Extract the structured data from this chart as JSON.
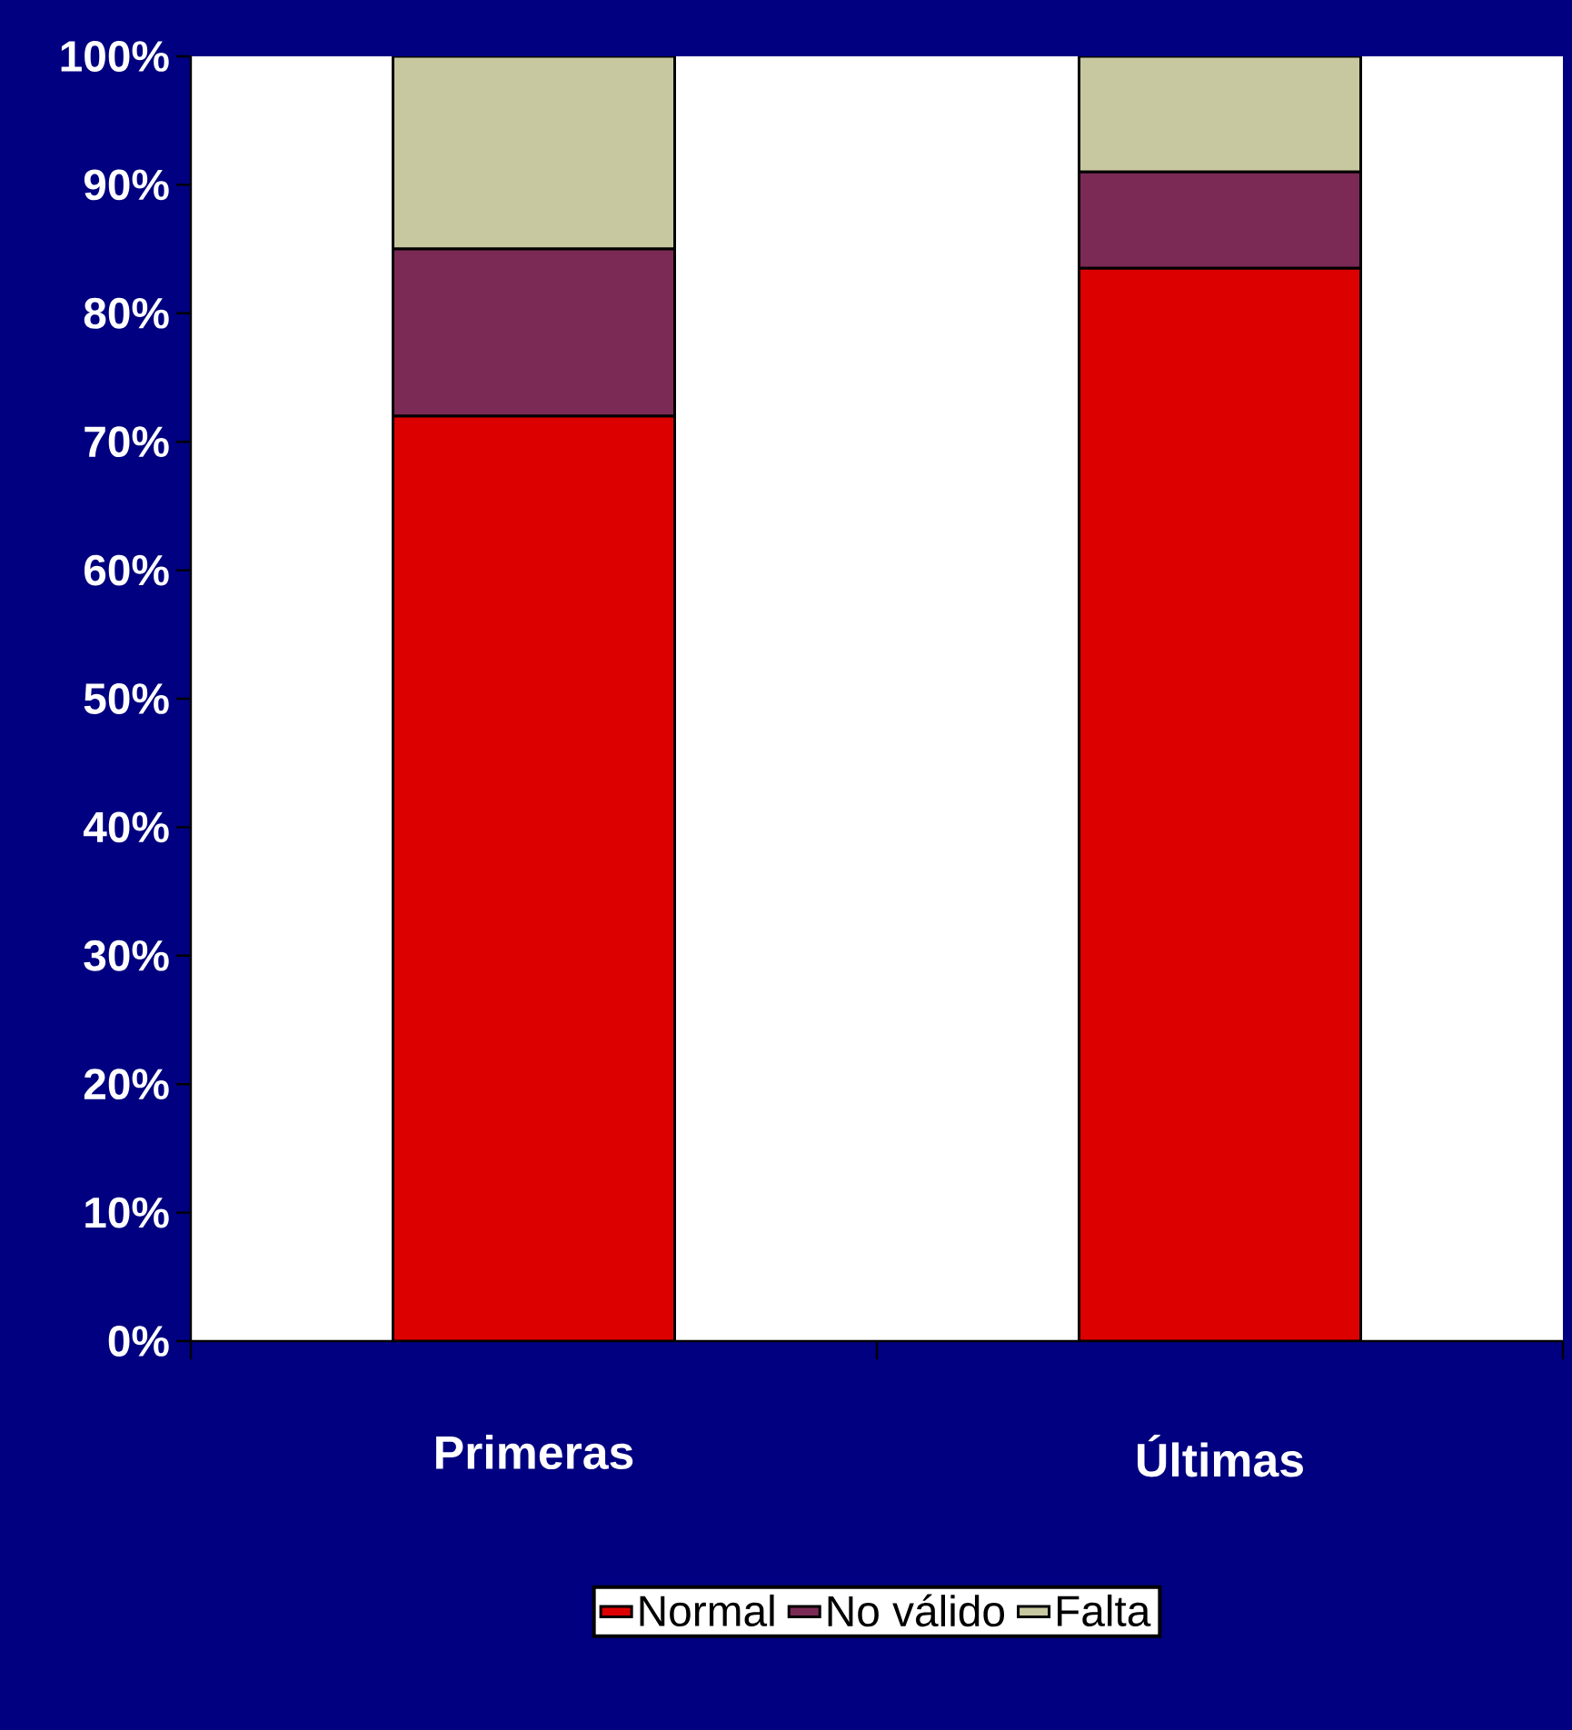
{
  "chart_data": {
    "type": "bar",
    "stacked": true,
    "categories": [
      "Primeras",
      "Últimas"
    ],
    "series": [
      {
        "name": "Normal",
        "color": "#dd0000",
        "values": [
          72,
          83.5
        ]
      },
      {
        "name": "No válido",
        "color": "#7a2a55",
        "values": [
          13,
          7.5
        ]
      },
      {
        "name": "Falta",
        "color": "#c8c8a0",
        "values": [
          15,
          9
        ]
      }
    ],
    "ylim": [
      0,
      100
    ],
    "yticks": [
      {
        "value": 0,
        "label": "0%"
      },
      {
        "value": 10,
        "label": "10%"
      },
      {
        "value": 20,
        "label": "20%"
      },
      {
        "value": 30,
        "label": "30%"
      },
      {
        "value": 40,
        "label": "40%"
      },
      {
        "value": 50,
        "label": "50%"
      },
      {
        "value": 60,
        "label": "60%"
      },
      {
        "value": 70,
        "label": "70%"
      },
      {
        "value": 80,
        "label": "80%"
      },
      {
        "value": 90,
        "label": "90%"
      },
      {
        "value": 100,
        "label": "100%"
      }
    ],
    "legend": "bottom"
  }
}
